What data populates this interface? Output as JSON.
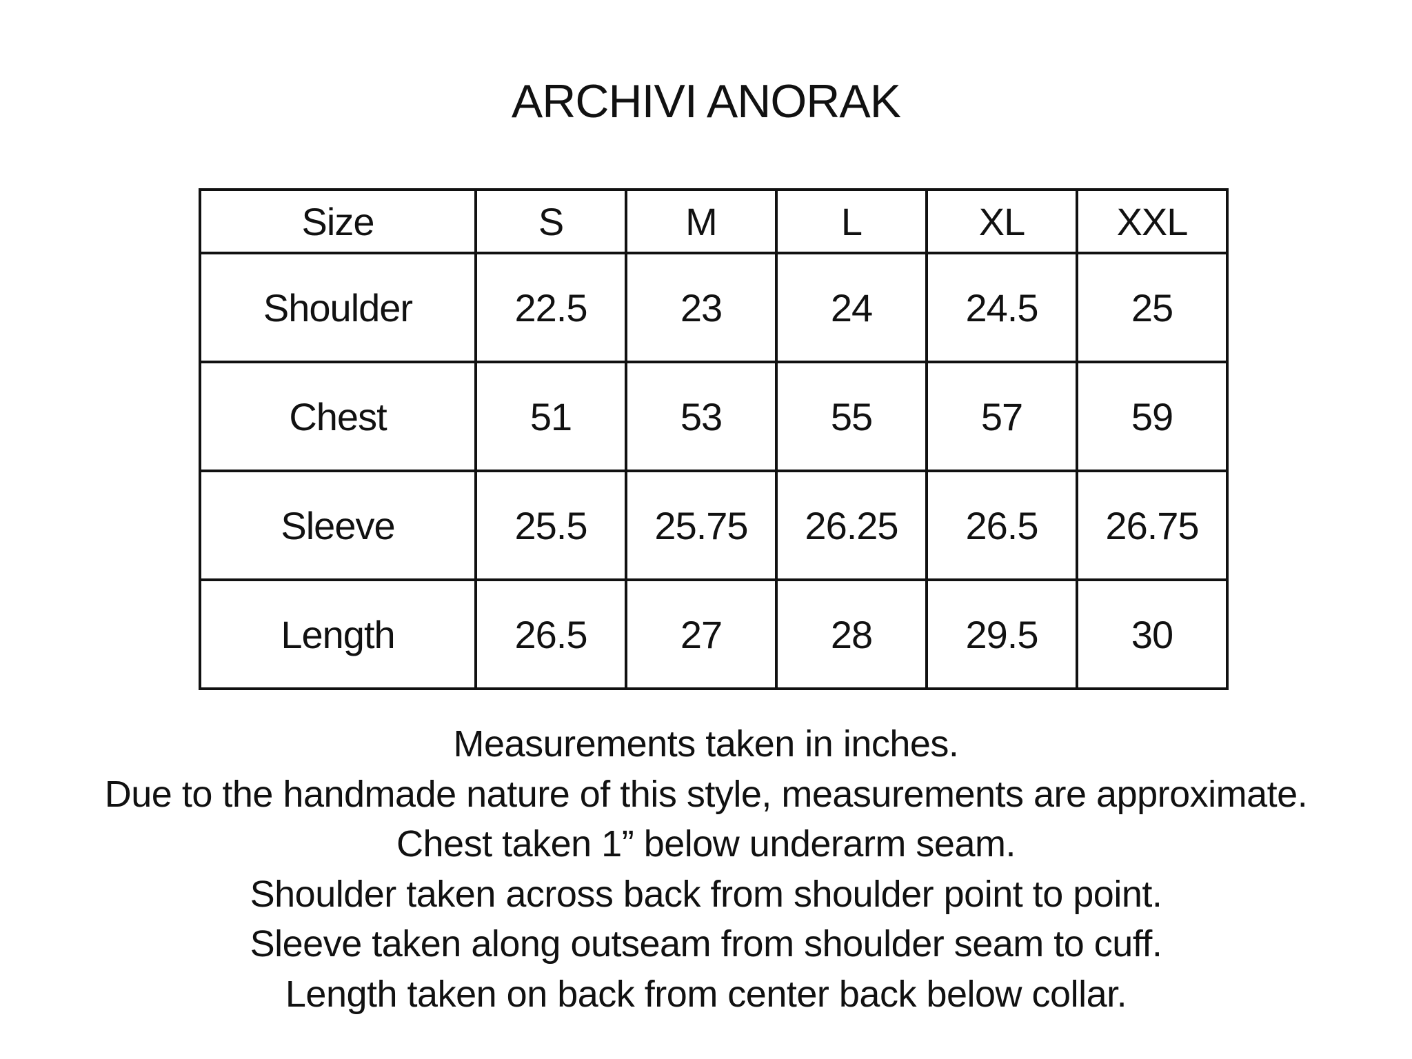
{
  "title": "ARCHIVI ANORAK",
  "table": {
    "header": [
      "Size",
      "S",
      "M",
      "L",
      "XL",
      "XXL"
    ],
    "rows": [
      [
        "Shoulder",
        "22.5",
        "23",
        "24",
        "24.5",
        "25"
      ],
      [
        "Chest",
        "51",
        "53",
        "55",
        "57",
        "59"
      ],
      [
        "Sleeve",
        "25.5",
        "25.75",
        "26.25",
        "26.5",
        "26.75"
      ],
      [
        "Length",
        "26.5",
        "27",
        "28",
        "29.5",
        "30"
      ]
    ]
  },
  "notes": [
    "Measurements taken in inches.",
    "Due to the handmade nature of this style, measurements are approximate.",
    "Chest taken 1” below underarm seam.",
    "Shoulder taken across back from shoulder point to point.",
    "Sleeve taken along outseam from shoulder seam to cuff.",
    "Length taken on back from center back below collar."
  ]
}
